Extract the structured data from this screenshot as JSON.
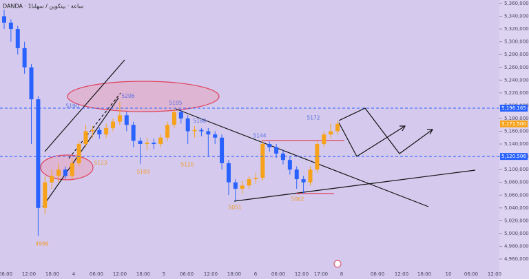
{
  "chart_data": {
    "type": "candlestick",
    "header": "DANDA · 1ساعة · بيتكوين / سهلنا",
    "categories": [
      "06:00",
      "12:00",
      "18:00",
      "4",
      "06:00",
      "12:00",
      "18:00",
      "5",
      "06:00",
      "12:00",
      "18:00",
      "6",
      "06:00",
      "12:00",
      "17:00",
      "8",
      "06:00",
      "12:00",
      "18:00",
      "10",
      "06:00",
      "12:00"
    ],
    "up_color": "#f7a21b",
    "down_color": "#2962ff",
    "open": [
      5340,
      5330,
      5320,
      5290,
      5260,
      5210,
      5040,
      5080,
      5090,
      5100,
      5090,
      5110,
      5140,
      5160,
      5162,
      5155,
      5165,
      5175,
      5185,
      5170,
      5145,
      5140,
      5142,
      5140,
      5150,
      5170,
      5190,
      5180,
      5160,
      5162,
      5160,
      5155,
      5150,
      5110,
      5080,
      5070,
      5075,
      5085,
      5087,
      5140,
      5135,
      5125,
      5115,
      5100,
      5085,
      5080,
      5100,
      5140,
      5155,
      5160
    ],
    "high": [
      5350,
      5335,
      5325,
      5300,
      5265,
      5215,
      5090,
      5100,
      5110,
      5105,
      5118,
      5145,
      5170,
      5168,
      5166,
      5172,
      5180,
      5206,
      5190,
      5175,
      5150,
      5150,
      5148,
      5155,
      5175,
      5195,
      5195,
      5185,
      5168,
      5165,
      5165,
      5160,
      5155,
      5115,
      5085,
      5082,
      5090,
      5095,
      5144,
      5144,
      5140,
      5130,
      5120,
      5105,
      5090,
      5105,
      5145,
      5160,
      5172,
      5176
    ],
    "low": [
      5320,
      5300,
      5280,
      5250,
      5140,
      4996,
      5030,
      5070,
      5080,
      5085,
      5085,
      5105,
      5135,
      5150,
      5148,
      5150,
      5160,
      5170,
      5160,
      5135,
      5109,
      5130,
      5132,
      5135,
      5145,
      5165,
      5172,
      5140,
      5150,
      5152,
      5120,
      5140,
      5100,
      5060,
      5051,
      5062,
      5070,
      5078,
      5082,
      5128,
      5118,
      5108,
      5092,
      5070,
      5062,
      5075,
      5095,
      5135,
      5150,
      5155
    ],
    "close": [
      5330,
      5320,
      5290,
      5260,
      5210,
      5040,
      5080,
      5090,
      5100,
      5090,
      5110,
      5140,
      5160,
      5162,
      5155,
      5165,
      5175,
      5185,
      5170,
      5145,
      5140,
      5142,
      5140,
      5150,
      5170,
      5190,
      5180,
      5160,
      5162,
      5160,
      5155,
      5150,
      5110,
      5080,
      5070,
      5075,
      5085,
      5087,
      5140,
      5135,
      5125,
      5115,
      5100,
      5085,
      5080,
      5100,
      5140,
      5155,
      5160,
      5171.5
    ],
    "ylim": [
      4960,
      5360
    ],
    "yticks": [
      {
        "value": 5360,
        "label": "5,360,000"
      },
      {
        "value": 5340,
        "label": "5,340,000"
      },
      {
        "value": 5320,
        "label": "5,320,000"
      },
      {
        "value": 5300,
        "label": "5,300,000"
      },
      {
        "value": 5280,
        "label": "5,280,000"
      },
      {
        "value": 5260,
        "label": "5,260,000"
      },
      {
        "value": 5240,
        "label": "5,240,000"
      },
      {
        "value": 5220,
        "label": "5,220,000"
      },
      {
        "value": 5200,
        "label": "5,200,000"
      },
      {
        "value": 5180,
        "label": "5,180,000"
      },
      {
        "value": 5160,
        "label": "5,160,000"
      },
      {
        "value": 5140,
        "label": "5,140,000"
      },
      {
        "value": 5120,
        "label": "5,120,000"
      },
      {
        "value": 5100,
        "label": "5,100,000"
      },
      {
        "value": 5080,
        "label": "5,080,000"
      },
      {
        "value": 5060,
        "label": "5,060,000"
      },
      {
        "value": 5040,
        "label": "5,040,000"
      },
      {
        "value": 5020,
        "label": "5,020,000"
      },
      {
        "value": 5000,
        "label": "5,000,000"
      },
      {
        "value": 4980,
        "label": "4,980,000"
      },
      {
        "value": 4960,
        "label": "4,960,000"
      }
    ],
    "price_lines": [
      {
        "value": 5196.165,
        "label": "5,196.165",
        "color": "#2962ff"
      },
      {
        "value": 5171.5,
        "label": "5,171.500",
        "color": "#f7a21b"
      },
      {
        "value": 5120.506,
        "label": "5,120.506",
        "color": "#2962ff"
      }
    ],
    "annotations": [
      {
        "label": "5190",
        "value": 5190,
        "color": "#5b6fe0"
      },
      {
        "label": "5206",
        "value": 5206,
        "color": "#5b6fe0"
      },
      {
        "label": "5195",
        "value": 5195,
        "color": "#5b6fe0"
      },
      {
        "label": "5180",
        "value": 5180,
        "color": "#5b6fe0"
      },
      {
        "label": "5144",
        "value": 5144,
        "color": "#5b6fe0"
      },
      {
        "label": "5172",
        "value": 5172,
        "color": "#5b6fe0"
      },
      {
        "label": "4996",
        "value": 4996,
        "color": "#f29a2e"
      },
      {
        "label": "5123",
        "value": 5123,
        "color": "#f29a2e"
      },
      {
        "label": "5109",
        "value": 5109,
        "color": "#f29a2e"
      },
      {
        "label": "5120",
        "value": 5120,
        "color": "#f29a2e"
      },
      {
        "label": "5051",
        "value": 5051,
        "color": "#f29a2e"
      },
      {
        "label": "5062",
        "value": 5062,
        "color": "#f29a2e"
      }
    ]
  }
}
